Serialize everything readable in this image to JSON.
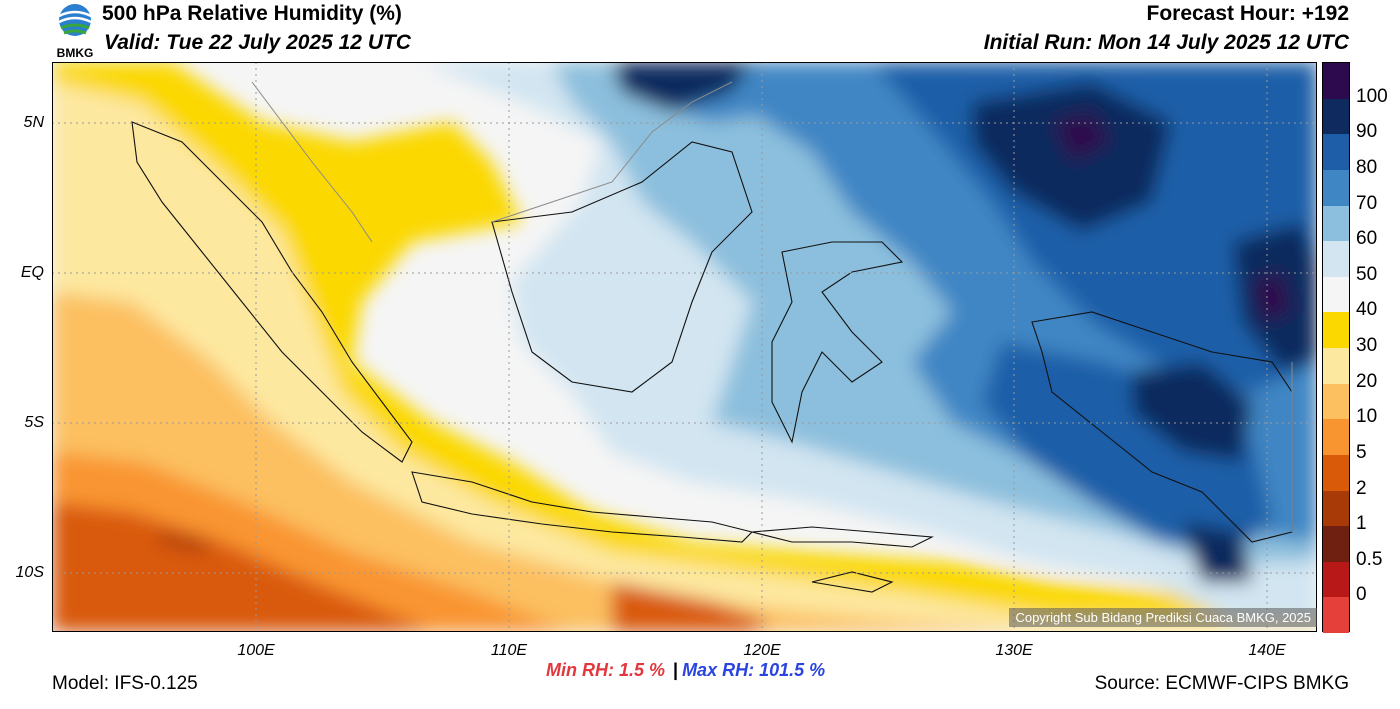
{
  "header": {
    "title": "500 hPa Relative Humidity (%)",
    "valid": "Valid: Tue 22 July 2025 12 UTC",
    "forecast_hour": "Forecast Hour: +192",
    "initial_run": "Initial Run: Mon 14 July 2025 12 UTC"
  },
  "logo": {
    "text": "BMKG",
    "icon": "bmkg-logo-icon"
  },
  "map": {
    "latitude_labels": [
      "5N",
      "EQ",
      "5S",
      "10S"
    ],
    "longitude_labels": [
      "100E",
      "110E",
      "120E",
      "130E",
      "140E"
    ],
    "copyright": "Copyright Sub Bidang Prediksi Cuaca BMKG, 2025"
  },
  "colorbar": {
    "labels": [
      "100",
      "90",
      "80",
      "70",
      "60",
      "50",
      "40",
      "30",
      "20",
      "10",
      "5",
      "2",
      "1",
      "0.5",
      "0"
    ],
    "colors": [
      "#2d0a4e",
      "#0e2a5e",
      "#1e5ea8",
      "#3f86c4",
      "#8cbfdd",
      "#d2e5f1",
      "#f5f5f5",
      "#fbd800",
      "#fde8a0",
      "#fcc060",
      "#f99530",
      "#d95a08",
      "#a83a08",
      "#702010",
      "#b81818",
      "#e5403a"
    ]
  },
  "footer": {
    "model": "Model: IFS-0.125",
    "source": "Source: ECMWF-CIPS BMKG",
    "min_label": "Min RH:   1.5 %",
    "separator": "|",
    "max_label": "Max RH: 101.5 %"
  }
}
